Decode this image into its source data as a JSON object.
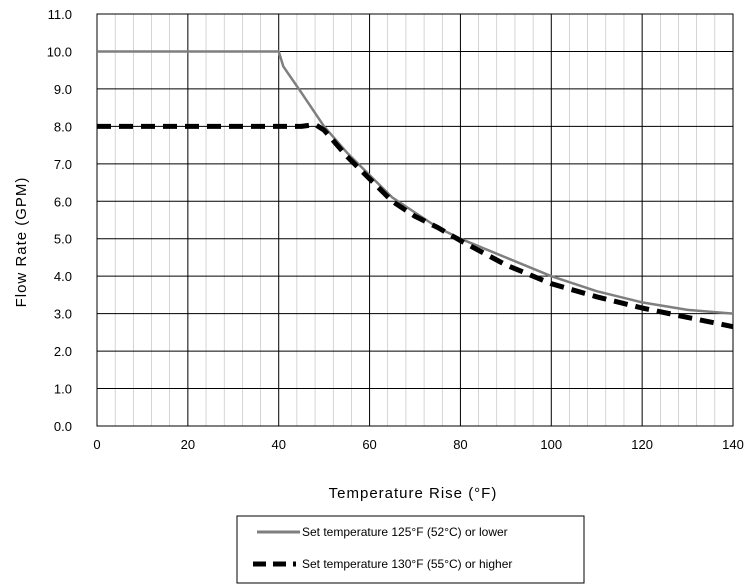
{
  "chart_data": {
    "type": "line",
    "xlabel": "Temperature Rise (°F)",
    "ylabel": "Flow Rate (GPM)",
    "xlim": [
      0,
      140
    ],
    "ylim": [
      0,
      11
    ],
    "x_ticks": [
      "0",
      "20",
      "40",
      "60",
      "80",
      "100",
      "120",
      "140"
    ],
    "y_ticks": [
      "0.0",
      "1.0",
      "2.0",
      "3.0",
      "4.0",
      "5.0",
      "6.0",
      "7.0",
      "8.0",
      "9.0",
      "10.0",
      "11.0"
    ],
    "x_ticks_values": [
      0,
      20,
      40,
      60,
      80,
      100,
      120,
      140
    ],
    "y_ticks_values": [
      0,
      1,
      2,
      3,
      4,
      5,
      6,
      7,
      8,
      9,
      10,
      11
    ],
    "grid": true,
    "legend_position": "bottom-center",
    "series": [
      {
        "name": "Set temperature 125°F (52°C) or lower",
        "color": "#7f7f7f",
        "style": "solid",
        "x": [
          0,
          40,
          41,
          45,
          50,
          55,
          60,
          65,
          70,
          75,
          80,
          90,
          100,
          110,
          120,
          130,
          140
        ],
        "y": [
          10,
          10,
          9.6,
          8.9,
          8.0,
          7.3,
          6.7,
          6.1,
          5.7,
          5.3,
          5.0,
          4.5,
          4.0,
          3.6,
          3.3,
          3.1,
          3.0
        ]
      },
      {
        "name": "Set temperature 130°F (55°C) or higher",
        "color": "#000000",
        "style": "dashed",
        "x": [
          0,
          45,
          48,
          50,
          55,
          60,
          65,
          70,
          75,
          80,
          90,
          100,
          110,
          120,
          130,
          140
        ],
        "y": [
          8,
          8,
          8.05,
          7.9,
          7.2,
          6.6,
          6.0,
          5.6,
          5.3,
          4.95,
          4.3,
          3.8,
          3.45,
          3.15,
          2.9,
          2.65
        ]
      }
    ]
  }
}
